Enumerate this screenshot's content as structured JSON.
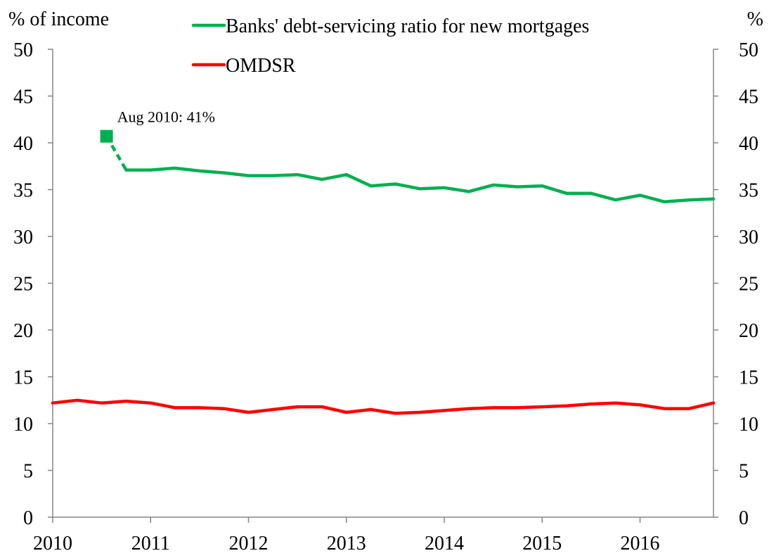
{
  "chart_data": {
    "type": "line",
    "left_axis_label": "% of income",
    "right_axis_label": "%",
    "ylim": [
      0,
      50
    ],
    "yticks": [
      0,
      5,
      10,
      15,
      20,
      25,
      30,
      35,
      40,
      45,
      50
    ],
    "xlim": [
      2010,
      2016.75
    ],
    "xticks": [
      "2010",
      "2011",
      "2012",
      "2013",
      "2014",
      "2015",
      "2016"
    ],
    "grid": false,
    "legend_position": "top",
    "series": [
      {
        "name": "Banks' debt-servicing ratio for new mortgages",
        "color": "#00B050",
        "x": [
          2010.75,
          2011.0,
          2011.25,
          2011.5,
          2011.75,
          2012.0,
          2012.25,
          2012.5,
          2012.75,
          2013.0,
          2013.25,
          2013.5,
          2013.75,
          2014.0,
          2014.25,
          2014.5,
          2014.75,
          2015.0,
          2015.25,
          2015.5,
          2015.75,
          2016.0,
          2016.25,
          2016.5,
          2016.75
        ],
        "values": [
          37.1,
          37.1,
          37.3,
          37.0,
          36.8,
          36.5,
          36.5,
          36.6,
          36.1,
          36.6,
          35.4,
          35.6,
          35.1,
          35.2,
          34.8,
          35.5,
          35.3,
          35.4,
          34.6,
          34.6,
          33.9,
          34.4,
          33.7,
          33.9,
          34.0
        ]
      },
      {
        "name": "OMDSR",
        "color": "#FF0000",
        "x": [
          2010.0,
          2010.25,
          2010.5,
          2010.75,
          2011.0,
          2011.25,
          2011.5,
          2011.75,
          2012.0,
          2012.25,
          2012.5,
          2012.75,
          2013.0,
          2013.25,
          2013.5,
          2013.75,
          2014.0,
          2014.25,
          2014.5,
          2014.75,
          2015.0,
          2015.25,
          2015.5,
          2015.75,
          2016.0,
          2016.25,
          2016.5,
          2016.75
        ],
        "values": [
          12.2,
          12.5,
          12.2,
          12.4,
          12.2,
          11.7,
          11.7,
          11.6,
          11.2,
          11.5,
          11.8,
          11.8,
          11.2,
          11.5,
          11.1,
          11.2,
          11.4,
          11.6,
          11.7,
          11.7,
          11.8,
          11.9,
          12.1,
          12.2,
          12.0,
          11.6,
          11.6,
          12.2
        ]
      }
    ],
    "highlight_point": {
      "series": "Banks' debt-servicing ratio for new mortgages",
      "x": 2010.55,
      "value": 40.7,
      "label": "Aug 2010: 41%",
      "connector_to": {
        "x": 2010.75,
        "value": 37.1
      }
    }
  }
}
